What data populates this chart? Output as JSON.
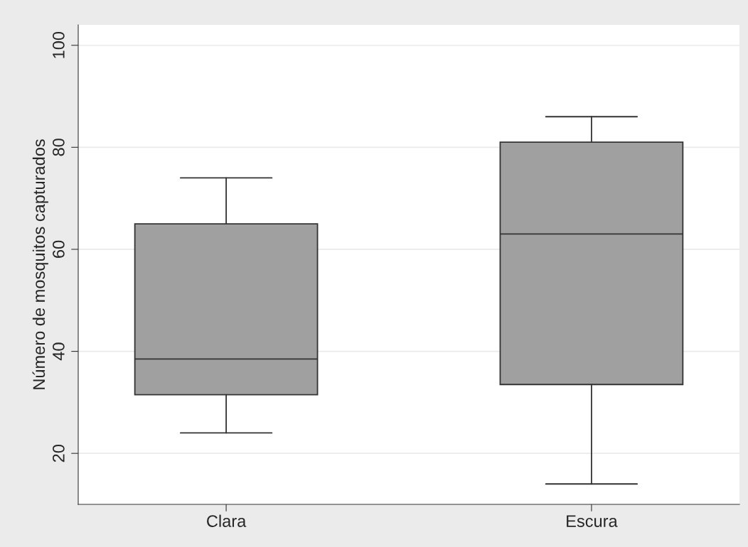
{
  "chart_data": {
    "type": "box",
    "ylabel": "Número de mosquitos capturados",
    "categories": [
      "Clara",
      "Escura"
    ],
    "boxes": [
      {
        "low": 24,
        "q1": 31.5,
        "median": 38.5,
        "q3": 65,
        "high": 74
      },
      {
        "low": 14,
        "q1": 33.5,
        "median": 63,
        "q3": 81,
        "high": 86
      }
    ],
    "color": "#a0a0a0",
    "ylim": [
      10,
      104
    ],
    "yticks": [
      20,
      40,
      60,
      80,
      100
    ],
    "grid": "y"
  }
}
